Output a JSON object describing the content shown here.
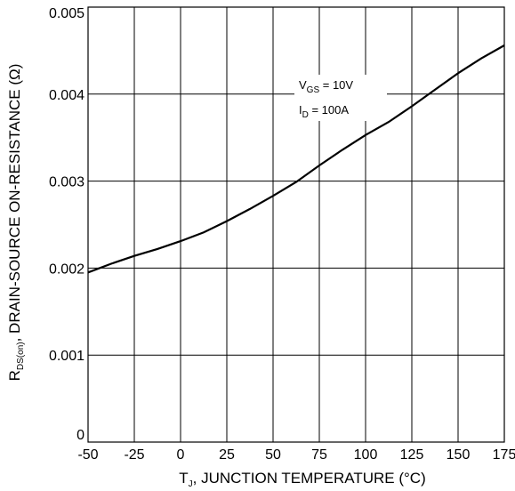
{
  "chart_data": {
    "type": "line",
    "xlabel": {
      "main": "T",
      "sub": "J",
      "rest": ", JUNCTION TEMPERATURE (°C)"
    },
    "ylabel": {
      "main": "R",
      "sub": "DS(on)",
      "rest": ", DRAIN-SOURCE ON-RESISTANCE (Ω)"
    },
    "xlim": [
      -50,
      175
    ],
    "ylim": [
      0,
      0.005
    ],
    "x_ticks": [
      -50,
      -25,
      0,
      25,
      50,
      75,
      100,
      125,
      150,
      175
    ],
    "x_tick_labels": [
      "-50",
      "-25",
      "0",
      "25",
      "50",
      "75",
      "100",
      "125",
      "150",
      "175"
    ],
    "y_ticks": [
      0,
      0.001,
      0.002,
      0.003,
      0.004,
      0.005
    ],
    "y_tick_labels": [
      "0",
      "0.001",
      "0.002",
      "0.003",
      "0.004",
      "0.005"
    ],
    "grid": true,
    "series": [
      {
        "x": [
          -50,
          -37.5,
          -25,
          -12.5,
          0,
          12.5,
          25,
          37.5,
          50,
          62.5,
          75,
          87.5,
          100,
          112.5,
          125,
          137.5,
          150,
          162.5,
          175
        ],
        "y": [
          0.00195,
          0.00205,
          0.00214,
          0.00222,
          0.00231,
          0.00241,
          0.00254,
          0.00268,
          0.00283,
          0.00299,
          0.00318,
          0.00336,
          0.00353,
          0.00368,
          0.00386,
          0.00405,
          0.00424,
          0.00441,
          0.00456
        ]
      }
    ],
    "annotations": [
      {
        "main": "V",
        "sub": "GS",
        "rest": " = 10V"
      },
      {
        "main": "I",
        "sub": "D",
        "rest": " = 100A"
      }
    ]
  }
}
